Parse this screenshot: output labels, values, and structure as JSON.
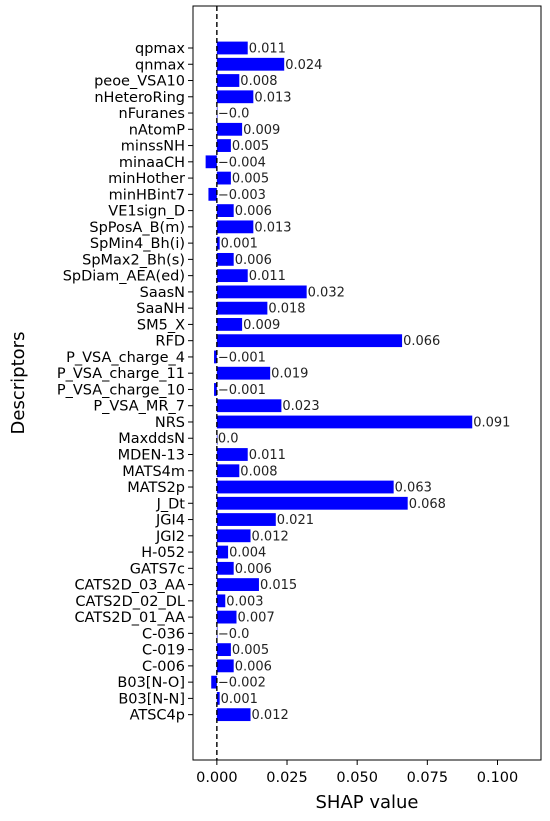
{
  "chart_data": {
    "type": "bar",
    "orientation": "horizontal",
    "xlabel": "SHAP value",
    "ylabel": "Descriptors",
    "xlim": [
      -0.0085,
      0.1155
    ],
    "xticks": [
      0.0,
      0.025,
      0.05,
      0.075,
      0.1
    ],
    "xtick_labels": [
      "0.000",
      "0.025",
      "0.050",
      "0.075",
      "0.100"
    ],
    "reference_line": {
      "x": 0.0,
      "style": "dashed"
    },
    "bar_color": "#0000ff",
    "grid": false,
    "categories": [
      "qpmax",
      "qnmax",
      "peoe_VSA10",
      "nHeteroRing",
      "nFuranes",
      "nAtomP",
      "minssNH",
      "minaaCH",
      "minHother",
      "minHBint7",
      "VE1sign_D",
      "SpPosA_B(m)",
      "SpMin4_Bh(i)",
      "SpMax2_Bh(s)",
      "SpDiam_AEA(ed)",
      "SaasN",
      "SaaNH",
      "SM5_X",
      "RFD",
      "P_VSA_charge_4",
      "P_VSA_charge_11",
      "P_VSA_charge_10",
      "P_VSA_MR_7",
      "NRS",
      "MaxddsN",
      "MDEN-13",
      "MATS4m",
      "MATS2p",
      "J_Dt",
      "JGI4",
      "JGI2",
      "H-052",
      "GATS7c",
      "CATS2D_03_AA",
      "CATS2D_02_DL",
      "CATS2D_01_AA",
      "C-036",
      "C-019",
      "C-006",
      "B03[N-O]",
      "B03[N-N]",
      "ATSC4p"
    ],
    "values": [
      0.011,
      0.024,
      0.008,
      0.013,
      -0.0,
      0.009,
      0.005,
      -0.004,
      0.005,
      -0.003,
      0.006,
      0.013,
      0.001,
      0.006,
      0.011,
      0.032,
      0.018,
      0.009,
      0.066,
      -0.001,
      0.019,
      -0.001,
      0.023,
      0.091,
      0.0,
      0.011,
      0.008,
      0.063,
      0.068,
      0.021,
      0.012,
      0.004,
      0.006,
      0.015,
      0.003,
      0.007,
      -0.0,
      0.005,
      0.006,
      -0.002,
      0.001,
      0.012
    ],
    "value_labels": [
      "0.011",
      "0.024",
      "0.008",
      "0.013",
      "−0.0",
      "0.009",
      "0.005",
      "−0.004",
      "0.005",
      "−0.003",
      "0.006",
      "0.013",
      "0.001",
      "0.006",
      "0.011",
      "0.032",
      "0.018",
      "0.009",
      "0.066",
      "−0.001",
      "0.019",
      "−0.001",
      "0.023",
      "0.091",
      "0.0",
      "0.011",
      "0.008",
      "0.063",
      "0.068",
      "0.021",
      "0.012",
      "0.004",
      "0.006",
      "0.015",
      "0.003",
      "0.007",
      "−0.0",
      "0.005",
      "0.006",
      "−0.002",
      "0.001",
      "0.012"
    ]
  }
}
